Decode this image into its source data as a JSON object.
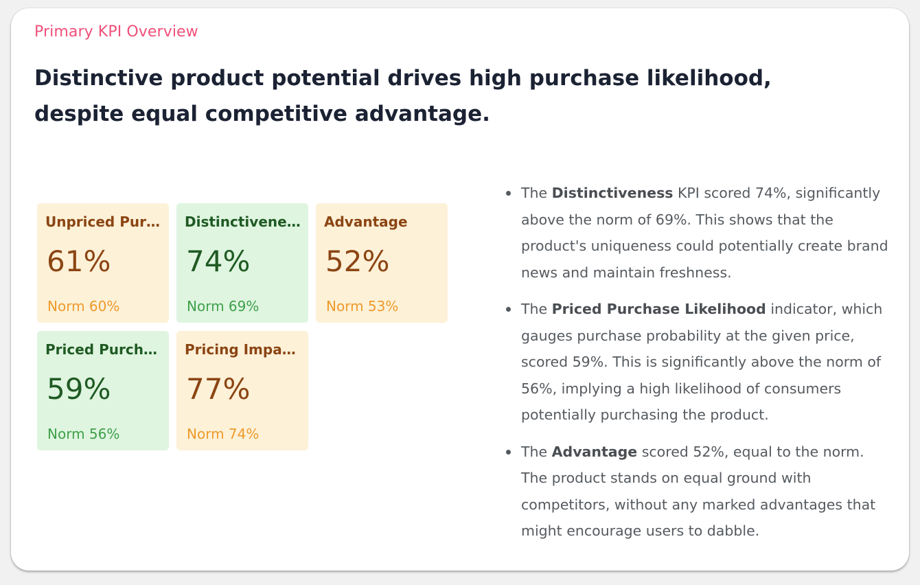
{
  "eyebrow": "Primary KPI Overview",
  "headline": "Distinctive product potential drives high purchase likelihood, despite equal competitive advantage.",
  "colors": {
    "eyebrow": "#f0507a",
    "tile_amber_bg": "#fdf1d8",
    "tile_green_bg": "#dff5e0",
    "text_brown": "#8b4513",
    "text_green": "#1f5a23"
  },
  "kpis": [
    {
      "title": "Unpriced Purc...",
      "value": "61%",
      "norm": "Norm 60%",
      "status": "amber"
    },
    {
      "title": "Distinctiveness",
      "value": "74%",
      "norm": "Norm 69%",
      "status": "green"
    },
    {
      "title": "Advantage",
      "value": "52%",
      "norm": "Norm 53%",
      "status": "amber"
    },
    {
      "title": "Priced Purcha...",
      "value": "59%",
      "norm": "Norm 56%",
      "status": "green"
    },
    {
      "title": "Pricing Impac...",
      "value": "77%",
      "norm": "Norm 74%",
      "status": "amber"
    }
  ],
  "insights": [
    {
      "prefix": "The ",
      "bold": "Distinctiveness",
      "rest": " KPI scored 74%, significantly above the norm of 69%. This shows that the product's uniqueness could potentially create brand news and maintain freshness."
    },
    {
      "prefix": "The ",
      "bold": "Priced Purchase Likelihood",
      "rest": " indicator, which gauges purchase probability at the given price, scored 59%. This is significantly above the norm of 56%, implying a high likelihood of consumers potentially purchasing the product."
    },
    {
      "prefix": "The ",
      "bold": "Advantage",
      "rest": " scored 52%, equal to the norm. The product stands on equal ground with competitors, without any marked advantages that might encourage users to dabble."
    }
  ]
}
